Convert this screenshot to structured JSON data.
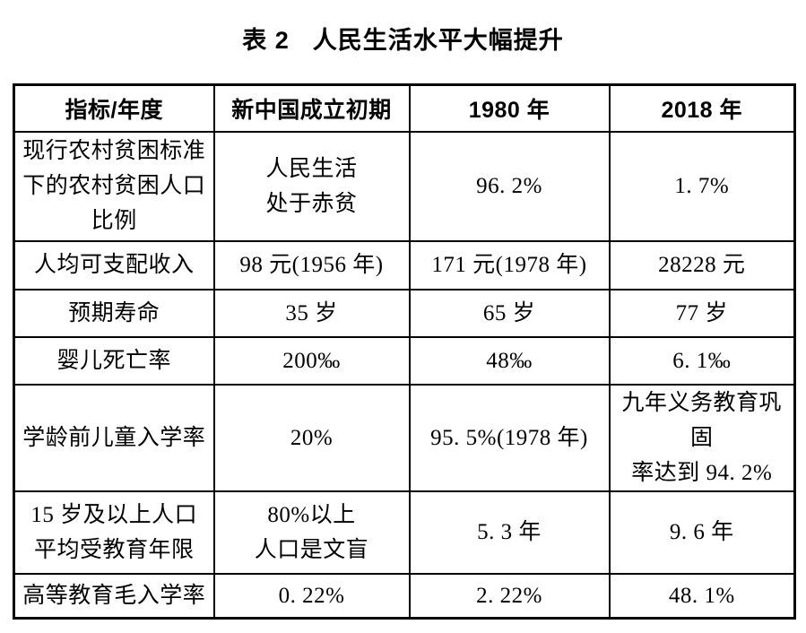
{
  "page": {
    "table_label": "表 2",
    "title": "人民生活水平大幅提升"
  },
  "colors": {
    "text": "#000000",
    "border": "#000000",
    "background": "#ffffff"
  },
  "table": {
    "headers": [
      "指标/年度",
      "新中国成立初期",
      "1980 年",
      "2018 年"
    ],
    "rows": [
      {
        "cells": [
          "现行农村贫困标准\n下的农村贫困人口\n比例",
          "人民生活\n处于赤贫",
          "96. 2%",
          "1. 7%"
        ]
      },
      {
        "cells": [
          "人均可支配收入",
          "98 元(1956 年)",
          "171 元(1978 年)",
          "28228 元"
        ]
      },
      {
        "cells": [
          "预期寿命",
          "35 岁",
          "65 岁",
          "77 岁"
        ]
      },
      {
        "cells": [
          "婴儿死亡率",
          "200‰",
          "48‰",
          "6. 1‰"
        ]
      },
      {
        "cells": [
          "学龄前儿童入学率",
          "20%",
          "95. 5%(1978 年)",
          "九年义务教育巩固\n率达到 94. 2%"
        ]
      },
      {
        "cells": [
          "15 岁及以上人口\n平均受教育年限",
          "80%以上\n人口是文盲",
          "5. 3 年",
          "9. 6 年"
        ]
      },
      {
        "cells": [
          "高等教育毛入学率",
          "0. 22%",
          "2. 22%",
          "48. 1%"
        ]
      }
    ]
  }
}
